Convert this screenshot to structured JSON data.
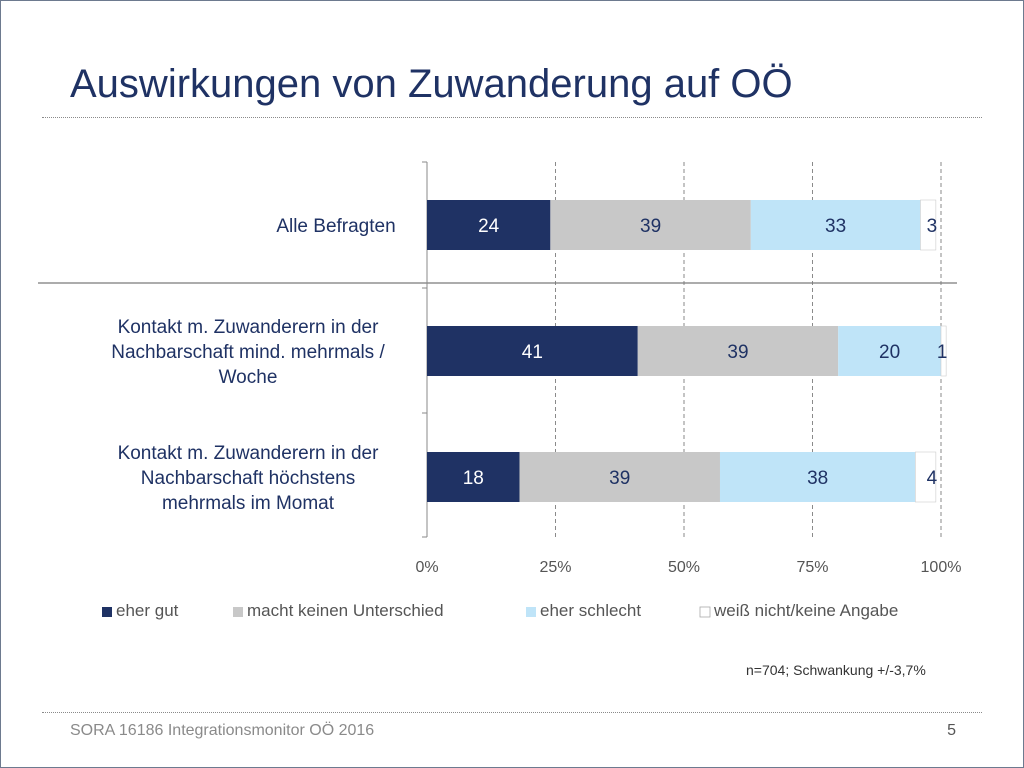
{
  "slide": {
    "title": "Auswirkungen von Zuwanderung auf OÖ",
    "note": "n=704; Schwankung +/-3,7%",
    "footer": "SORA 16186 Integrationsmonitor OÖ 2016",
    "page_number": "5"
  },
  "chart_data": {
    "type": "bar",
    "orientation": "horizontal",
    "stacked": true,
    "categories": [
      "Alle Befragten",
      "Kontakt m. Zuwanderern in der Nachbarschaft mind. mehrmals / Woche",
      "Kontakt m. Zuwanderern in der Nachbarschaft höchstens mehrmals im Momat"
    ],
    "category_lines": [
      [
        "Alle Befragten"
      ],
      [
        "Kontakt m. Zuwanderern in der",
        "Nachbarschaft mind. mehrmals /",
        "Woche"
      ],
      [
        "Kontakt m. Zuwanderern in der",
        "Nachbarschaft höchstens",
        "mehrmals im Momat"
      ]
    ],
    "series": [
      {
        "name": "eher gut",
        "values": [
          24,
          41,
          18
        ],
        "color": "#1f3264",
        "label_color": "#ffffff"
      },
      {
        "name": "macht keinen Unterschied",
        "values": [
          39,
          39,
          39
        ],
        "color": "#c8c8c8",
        "label_color": "#1f3264"
      },
      {
        "name": "eher schlecht",
        "values": [
          33,
          20,
          38
        ],
        "color": "#bfe4f8",
        "label_color": "#1f3264"
      },
      {
        "name": "weiß nicht/keine Angabe",
        "values": [
          3,
          1,
          4
        ],
        "color": "#ffffff",
        "label_color": "#1f3264"
      }
    ],
    "x_ticks": [
      "0%",
      "25%",
      "50%",
      "75%",
      "100%"
    ],
    "xlim": [
      0,
      100
    ],
    "grid": "dashed vertical",
    "legend": "bottom"
  }
}
